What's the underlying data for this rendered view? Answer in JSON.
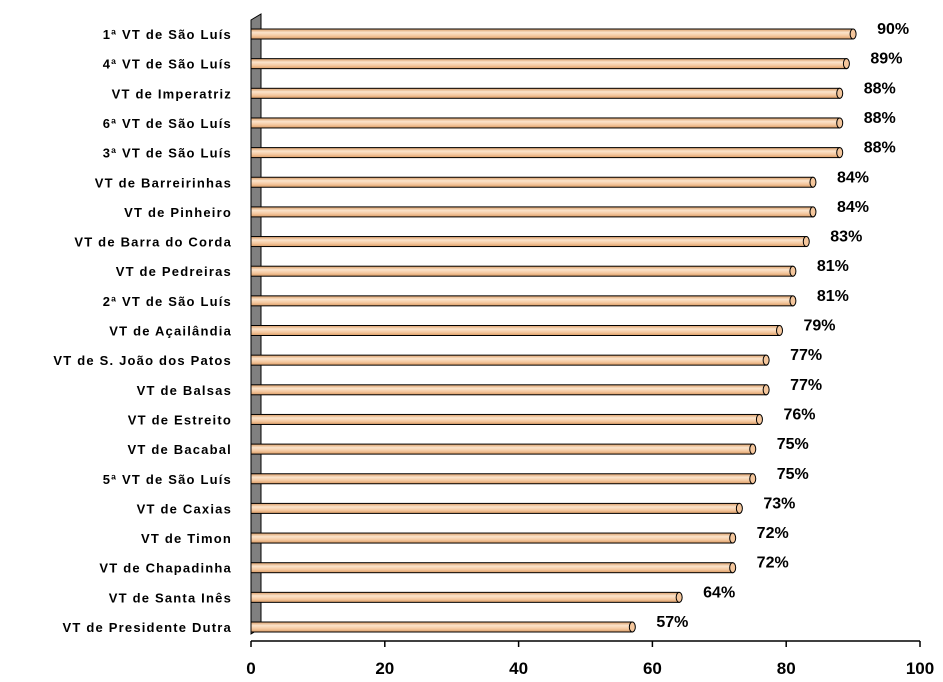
{
  "chart_data": {
    "type": "bar",
    "orientation": "horizontal",
    "categories": [
      "1ª VT de São Luís",
      "4ª VT de São Luís",
      "VT de Imperatriz",
      "6ª VT de São Luís",
      "3ª VT de São Luís",
      "VT de Barreirinhas",
      "VT de Pinheiro",
      "VT de Barra do Corda",
      "VT de Pedreiras",
      "2ª VT de São Luís",
      "VT de Açailândia",
      "VT de S. João dos Patos",
      "VT de Balsas",
      "VT de Estreito",
      "VT de Bacabal",
      "5ª VT de São Luís",
      "VT de Caxias",
      "VT de Timon",
      "VT de Chapadinha",
      "VT de Santa Inês",
      "VT de Presidente Dutra"
    ],
    "values": [
      90,
      89,
      88,
      88,
      88,
      84,
      84,
      83,
      81,
      81,
      79,
      77,
      77,
      76,
      75,
      75,
      73,
      72,
      72,
      64,
      57
    ],
    "data_labels": [
      "90%",
      "89%",
      "88%",
      "88%",
      "88%",
      "84%",
      "84%",
      "83%",
      "81%",
      "81%",
      "79%",
      "77%",
      "77%",
      "76%",
      "75%",
      "75%",
      "73%",
      "72%",
      "72%",
      "64%",
      "57%"
    ],
    "xticks": [
      "0",
      "20",
      "40",
      "60",
      "80",
      "100"
    ],
    "xlim": [
      0,
      100
    ],
    "title": "",
    "xlabel": "",
    "ylabel": "",
    "grid": false,
    "legend": "none",
    "colors": {
      "bar_fill": "#F4C69C",
      "bar_highlight": "#FBE4CC",
      "bar_shadow": "#D99A63",
      "bar_stroke": "#000000",
      "wall": "#808080",
      "axis": "#000000"
    }
  }
}
